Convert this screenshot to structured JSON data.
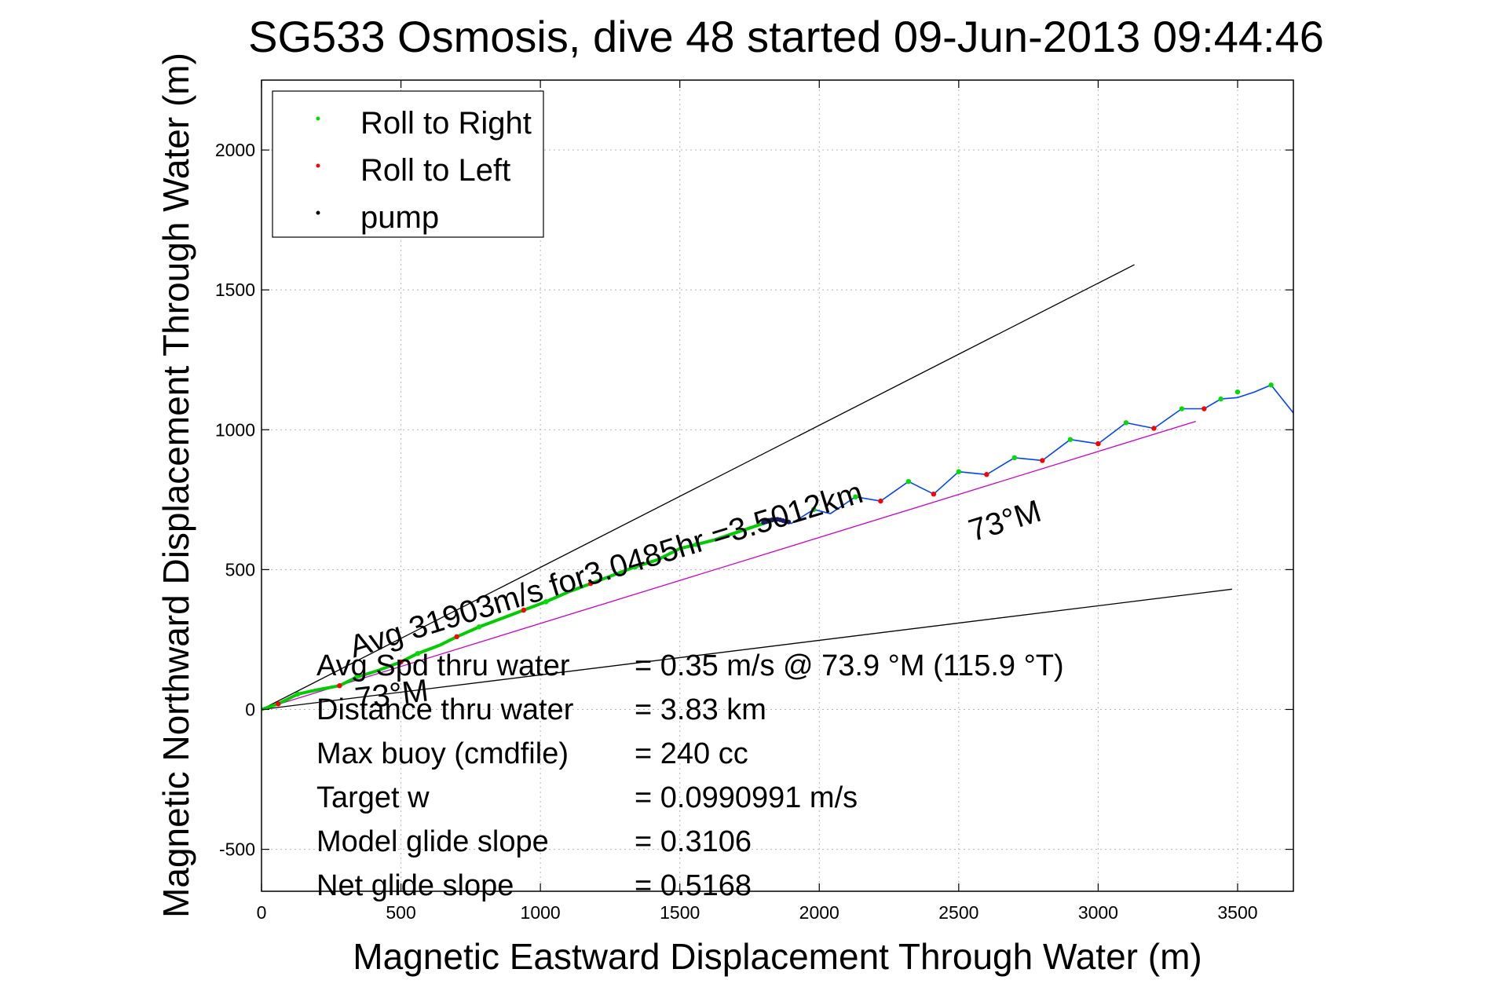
{
  "chart_data": {
    "type": "line",
    "title": "SG533 Osmosis, dive 48 started 09-Jun-2013 09:44:46",
    "xlabel": "Magnetic Eastward Displacement Through Water (m)",
    "ylabel": "Magnetic Northward Displacement Through Water (m)",
    "xlim": [
      0,
      3700
    ],
    "ylim": [
      -650,
      2250
    ],
    "x_ticks": [
      0,
      500,
      1000,
      1500,
      2000,
      2500,
      3000,
      3500
    ],
    "x_tick_labels": [
      "0",
      "500",
      "1000",
      "1500",
      "2000",
      "2500",
      "3000",
      "3500"
    ],
    "y_ticks": [
      -500,
      0,
      500,
      1000,
      1500,
      2000
    ],
    "y_tick_labels": [
      "-500",
      "0",
      "500",
      "1000",
      "1500",
      "2000"
    ],
    "grid": true,
    "legend": {
      "placement": "top-left",
      "entries": [
        {
          "label": "Roll to Right",
          "color": "#00dd00"
        },
        {
          "label": "Roll to Left",
          "color": "#ff0000"
        },
        {
          "label": "pump",
          "color": "#000000"
        }
      ]
    },
    "series": [
      {
        "color": "#00cc00",
        "x": [
          0,
          60,
          130,
          200,
          280,
          340,
          420,
          500,
          560,
          640,
          700,
          780,
          860,
          940,
          1020,
          1100,
          1180,
          1260,
          1340,
          1420,
          1500,
          1560,
          1620,
          1680,
          1740,
          1800,
          1850
        ],
        "y": [
          0,
          20,
          55,
          70,
          85,
          115,
          140,
          170,
          200,
          230,
          260,
          295,
          325,
          355,
          385,
          420,
          450,
          480,
          510,
          535,
          575,
          590,
          605,
          625,
          645,
          665,
          680
        ]
      },
      {
        "color": "#0044ff",
        "x": [
          1850,
          1900,
          1980,
          2040,
          2130,
          2220,
          2320,
          2410,
          2500,
          2600,
          2700,
          2800,
          2900,
          3000,
          3100,
          3200,
          3300,
          3380,
          3440,
          3500,
          3560,
          3620,
          3700
        ],
        "y": [
          680,
          665,
          715,
          700,
          760,
          745,
          815,
          770,
          850,
          840,
          900,
          890,
          965,
          950,
          1025,
          1005,
          1075,
          1075,
          1110,
          1115,
          1135,
          1160,
          1060
        ]
      }
    ],
    "roll_right_points": {
      "x": [
        130,
        340,
        560,
        780,
        1020,
        1340,
        1560,
        1980,
        2130,
        2320,
        2500,
        2700,
        2900,
        3100,
        3300,
        3440,
        3500,
        3620
      ],
      "y": [
        55,
        115,
        200,
        295,
        385,
        510,
        590,
        715,
        760,
        815,
        850,
        900,
        965,
        1025,
        1075,
        1110,
        1135,
        1160
      ]
    },
    "roll_left_points": {
      "x": [
        60,
        280,
        500,
        700,
        940,
        1180,
        2220,
        2410,
        2600,
        2800,
        3000,
        3200,
        3380
      ],
      "y": [
        20,
        85,
        170,
        260,
        355,
        450,
        745,
        770,
        840,
        890,
        950,
        1005,
        1075
      ]
    },
    "pump_points": {
      "x": [
        1800,
        1810,
        1820,
        1830,
        1840,
        1850,
        1860,
        1870,
        1880,
        1890
      ],
      "y": [
        668,
        672,
        676,
        678,
        680,
        680,
        678,
        675,
        672,
        670
      ]
    },
    "reference_lines": [
      {
        "color": "#000000",
        "x": [
          0,
          3130
        ],
        "y": [
          0,
          1590
        ]
      },
      {
        "color": "#000000",
        "x": [
          0,
          3480
        ],
        "y": [
          0,
          430
        ]
      },
      {
        "color": "#cc00cc",
        "x": [
          0,
          3350
        ],
        "y": [
          0,
          1030
        ]
      }
    ],
    "annotations": [
      {
        "text": "73°M",
        "x": 2550,
        "y": 600,
        "angle_deg": -17
      },
      {
        "text": "73°M",
        "x": 340,
        "y": 0,
        "angle_deg": -7
      },
      {
        "text": "Avg 31903m/s for3.0485hr =3.5012km",
        "x": 330,
        "y": 185,
        "angle_deg": -17
      }
    ],
    "stats": [
      {
        "label": "Avg Spd thru water",
        "value": "=  0.35 m/s @  73.9 °M (115.9 °T)"
      },
      {
        "label": "Distance thru water",
        "value": "=  3.83 km"
      },
      {
        "label": "Max buoy (cmdfile)",
        "value": "= 240 cc"
      },
      {
        "label": "Target w",
        "value": "= 0.0990991 m/s"
      },
      {
        "label": "Model glide slope",
        "value": "= 0.3106"
      },
      {
        "label": "Net glide slope",
        "value": "= 0.5168"
      }
    ]
  }
}
